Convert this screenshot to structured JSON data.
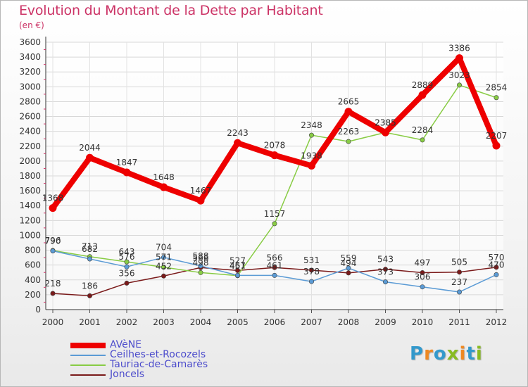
{
  "title": "Evolution du Montant de la Dette par Habitant",
  "unit": "(en €)",
  "logo": {
    "text": "Proxiti",
    "colors": [
      "#3399cc",
      "#ee8822",
      "#3399cc",
      "#88bb22",
      "#ee8822",
      "#3399cc",
      "#88bb22"
    ]
  },
  "chart_data": {
    "type": "line",
    "x": [
      "2000",
      "2001",
      "2002",
      "2003",
      "2004",
      "2005",
      "2006",
      "2007",
      "2008",
      "2009",
      "2010",
      "2011",
      "2012"
    ],
    "ylim": [
      0,
      3600
    ],
    "yticks": [
      0,
      200,
      400,
      600,
      800,
      1000,
      1200,
      1400,
      1600,
      1800,
      2000,
      2200,
      2400,
      2600,
      2800,
      3000,
      3200,
      3400,
      3600
    ],
    "grid": true,
    "legend_position": "bottom-left",
    "series": [
      {
        "name": "Joncels",
        "color": "#7a1a1a",
        "values": [
          218,
          186,
          356,
          452,
          566,
          527,
          566,
          531,
          494,
          543,
          497,
          505,
          570
        ],
        "labels": [
          "218",
          "186",
          "356",
          "452",
          "566",
          "527",
          "566",
          "531",
          "494",
          "543",
          "497",
          "505",
          "570"
        ]
      },
      {
        "name": "Tauriac-de-Camarès",
        "color": "#88cc44",
        "values": [
          796,
          713,
          643,
          571,
          498,
          457,
          1157,
          2348,
          2263,
          2385,
          2284,
          3023,
          2854
        ],
        "labels": [
          "796",
          "713",
          "643",
          "571",
          "498",
          "457",
          "1157",
          "2348",
          "2263",
          "2385",
          "2284",
          "3023",
          "2854"
        ]
      },
      {
        "name": "Ceilhes-et-Rocozels",
        "color": "#5b9bd5",
        "values": [
          790,
          682,
          576,
          704,
          588,
          461,
          461,
          378,
          559,
          373,
          306,
          237,
          470
        ],
        "labels": [
          "790",
          "682",
          "576",
          "704",
          "588",
          "461",
          "461",
          "378",
          "559",
          "373",
          "306",
          "237",
          "470"
        ]
      },
      {
        "name": "AVèNE",
        "color": "#ee0000",
        "values": [
          1368,
          2044,
          1847,
          1648,
          1467,
          2243,
          2078,
          1938,
          2665,
          2385,
          2889,
          3386,
          2207
        ],
        "labels": [
          "1368",
          "2044",
          "1847",
          "1648",
          "1467",
          "2243",
          "2078",
          "1938",
          "2665",
          "2385",
          "2889",
          "3386",
          "2207"
        ]
      }
    ]
  }
}
